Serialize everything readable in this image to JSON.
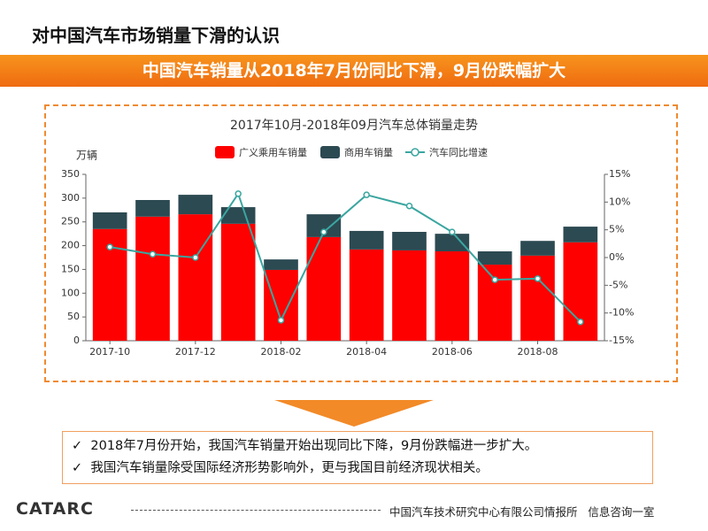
{
  "header": {
    "title": "对中国汽车市场销量下滑的认识",
    "banner": "中国汽车销量从2018年7月份同比下滑，9月份跌幅扩大"
  },
  "chart_data": {
    "type": "bar",
    "title": "2017年10月-2018年09月汽车总体销量走势",
    "y_label": "万辆",
    "categories": [
      "2017-10",
      null,
      "2017-12",
      null,
      "2018-02",
      null,
      "2018-04",
      null,
      "2018-06",
      null,
      "2018-08",
      null
    ],
    "stacked": true,
    "series": [
      {
        "name": "广义乘用车销量",
        "color": "#ff0000",
        "values": [
          235,
          261,
          266,
          246,
          149,
          218,
          192,
          190,
          188,
          160,
          179,
          207
        ]
      },
      {
        "name": "商用车销量",
        "color": "#2c4a52",
        "values": [
          35,
          35,
          41,
          35,
          22,
          48,
          39,
          39,
          37,
          28,
          31,
          33
        ]
      },
      {
        "name": "汽车同比增速",
        "color": "#3aa6a0",
        "type": "line",
        "axis": "y2",
        "values": [
          1.9,
          0.6,
          0,
          11.5,
          -11.3,
          4.6,
          11.3,
          9.3,
          4.6,
          -4,
          -3.8,
          -11.6
        ]
      }
    ],
    "ylim": [
      0,
      350
    ],
    "yticks": [
      0,
      50,
      100,
      150,
      200,
      250,
      300,
      350
    ],
    "y2lim": [
      -15,
      15
    ],
    "y2ticks": [
      {
        "value": -15,
        "label": "-15%"
      },
      {
        "value": -10,
        "label": "-10%"
      },
      {
        "value": -5,
        "label": "-5%"
      },
      {
        "value": 0,
        "label": "0%"
      },
      {
        "value": 5,
        "label": "5%"
      },
      {
        "value": 10,
        "label": "10%"
      },
      {
        "value": 15,
        "label": "15%"
      }
    ],
    "grid": false,
    "legend": "top"
  },
  "bullets": [
    "2018年7月份开始，我国汽车销量开始出现同比下降，9月份跌幅进一步扩大。",
    "我国汽车销量除受国际经济形势影响外，更与我国目前经济现状相关。"
  ],
  "footer": {
    "logo": "CATARC",
    "text": "中国汽车技术研究中心有限公司情报所   信息咨询一室"
  }
}
